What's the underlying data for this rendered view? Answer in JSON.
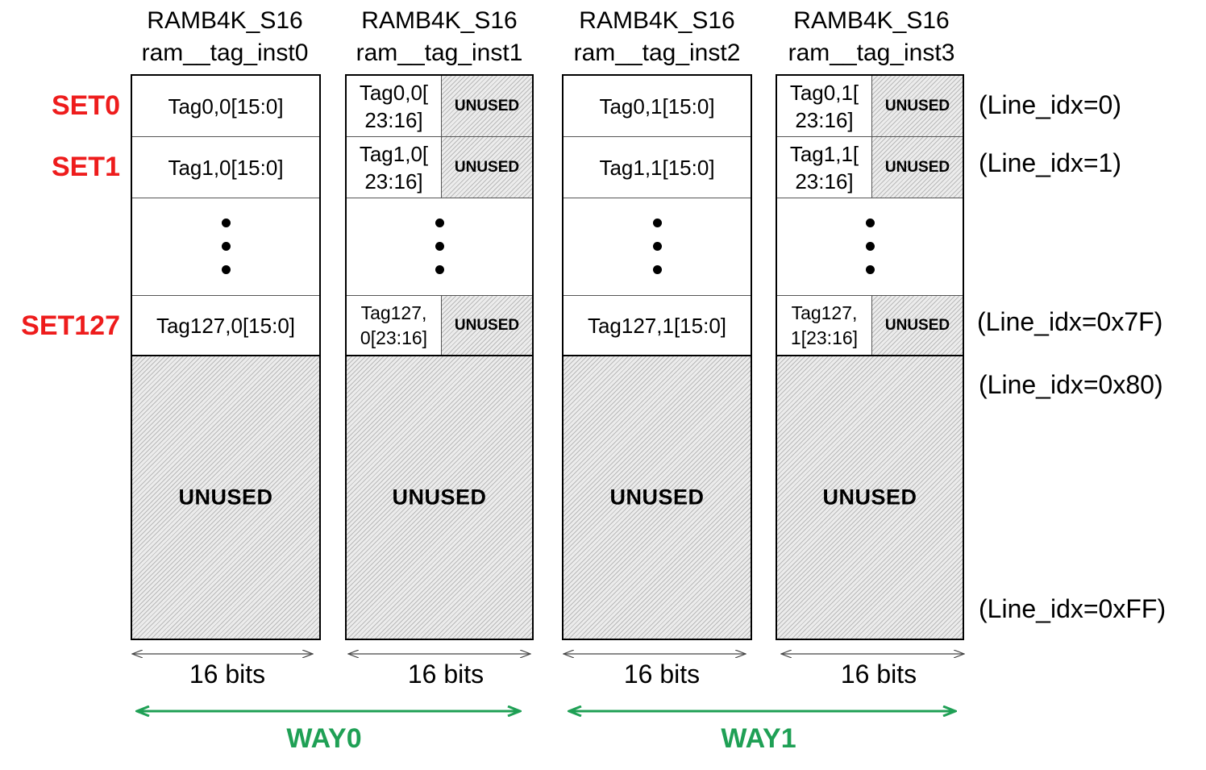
{
  "blocks": [
    {
      "type_label": "RAMB4K_S16",
      "inst_label": "ram__tag_inst0",
      "rows": [
        {
          "text": "Tag0,0[15:0]"
        },
        {
          "text": "Tag1,0[15:0]"
        },
        {
          "text": "Tag127,0[15:0]"
        }
      ],
      "unused_label": "UNUSED",
      "width_label": "16 bits"
    },
    {
      "type_label": "RAMB4K_S16",
      "inst_label": "ram__tag_inst1",
      "rows": [
        {
          "line1": "Tag0,0[",
          "line2": "23:16]",
          "unused": "UNUSED"
        },
        {
          "line1": "Tag1,0[",
          "line2": "23:16]",
          "unused": "UNUSED"
        },
        {
          "line1": "Tag127,",
          "line2": "0[23:16]",
          "unused": "UNUSED"
        }
      ],
      "unused_label": "UNUSED",
      "width_label": "16 bits"
    },
    {
      "type_label": "RAMB4K_S16",
      "inst_label": "ram__tag_inst2",
      "rows": [
        {
          "text": "Tag0,1[15:0]"
        },
        {
          "text": "Tag1,1[15:0]"
        },
        {
          "text": "Tag127,1[15:0]"
        }
      ],
      "unused_label": "UNUSED",
      "width_label": "16 bits"
    },
    {
      "type_label": "RAMB4K_S16",
      "inst_label": "ram__tag_inst3",
      "rows": [
        {
          "line1": "Tag0,1[",
          "line2": "23:16]",
          "unused": "UNUSED"
        },
        {
          "line1": "Tag1,1[",
          "line2": "23:16]",
          "unused": "UNUSED"
        },
        {
          "line1": "Tag127,",
          "line2": "1[23:16]",
          "unused": "UNUSED"
        }
      ],
      "unused_label": "UNUSED",
      "width_label": "16 bits"
    }
  ],
  "set_labels": [
    "SET0",
    "SET1",
    "SET127"
  ],
  "line_labels": [
    "(Line_idx=0)",
    "(Line_idx=1)",
    "(Line_idx=0x7F)",
    "(Line_idx=0x80)",
    "(Line_idx=0xFF)"
  ],
  "ways": [
    "WAY0",
    "WAY1"
  ],
  "colors": {
    "set_label": "#ee1c1c",
    "way": "#1fa055",
    "hatch": "#ececec"
  }
}
